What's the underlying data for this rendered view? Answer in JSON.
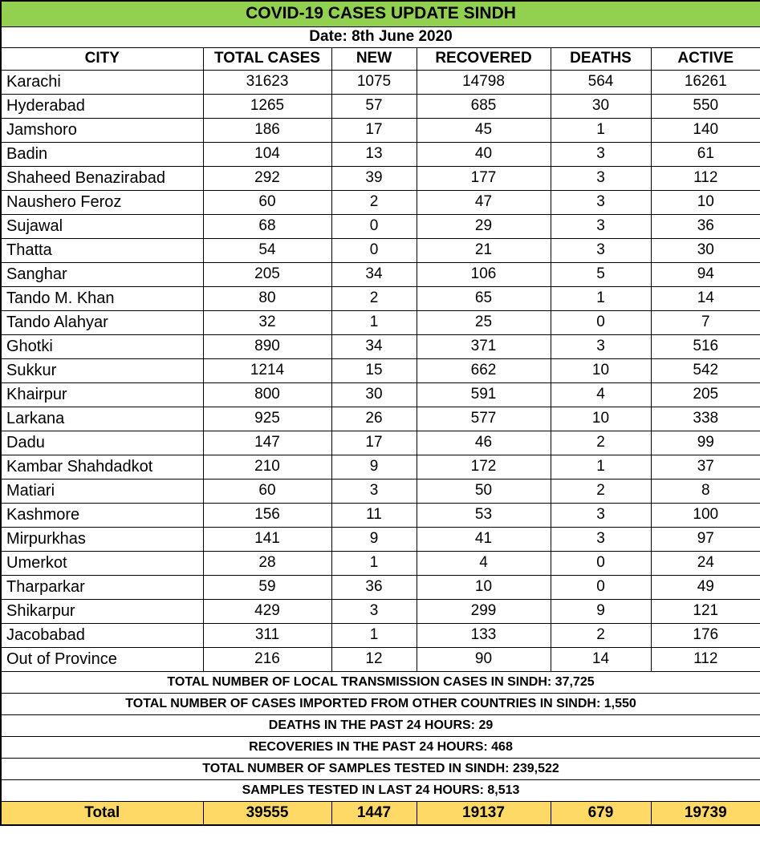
{
  "chart_data": {
    "type": "table",
    "title": "COVID-19 CASES UPDATE SINDH",
    "date_line": "Date: 8th June 2020",
    "columns": [
      "CITY",
      "TOTAL CASES",
      "NEW",
      "RECOVERED",
      "DEATHS",
      "ACTIVE"
    ],
    "rows": [
      [
        "Karachi",
        31623,
        1075,
        14798,
        564,
        16261
      ],
      [
        "Hyderabad",
        1265,
        57,
        685,
        30,
        550
      ],
      [
        "Jamshoro",
        186,
        17,
        45,
        1,
        140
      ],
      [
        "Badin",
        104,
        13,
        40,
        3,
        61
      ],
      [
        "Shaheed Benazirabad",
        292,
        39,
        177,
        3,
        112
      ],
      [
        "Naushero Feroz",
        60,
        2,
        47,
        3,
        10
      ],
      [
        "Sujawal",
        68,
        0,
        29,
        3,
        36
      ],
      [
        "Thatta",
        54,
        0,
        21,
        3,
        30
      ],
      [
        "Sanghar",
        205,
        34,
        106,
        5,
        94
      ],
      [
        "Tando M. Khan",
        80,
        2,
        65,
        1,
        14
      ],
      [
        "Tando Alahyar",
        32,
        1,
        25,
        0,
        7
      ],
      [
        "Ghotki",
        890,
        34,
        371,
        3,
        516
      ],
      [
        "Sukkur",
        1214,
        15,
        662,
        10,
        542
      ],
      [
        "Khairpur",
        800,
        30,
        591,
        4,
        205
      ],
      [
        "Larkana",
        925,
        26,
        577,
        10,
        338
      ],
      [
        "Dadu",
        147,
        17,
        46,
        2,
        99
      ],
      [
        "Kambar Shahdadkot",
        210,
        9,
        172,
        1,
        37
      ],
      [
        "Matiari",
        60,
        3,
        50,
        2,
        8
      ],
      [
        "Kashmore",
        156,
        11,
        53,
        3,
        100
      ],
      [
        "Mirpurkhas",
        141,
        9,
        41,
        3,
        97
      ],
      [
        "Umerkot",
        28,
        1,
        4,
        0,
        24
      ],
      [
        "Tharparkar",
        59,
        36,
        10,
        0,
        49
      ],
      [
        "Shikarpur",
        429,
        3,
        299,
        9,
        121
      ],
      [
        "Jacobabad",
        311,
        1,
        133,
        2,
        176
      ],
      [
        "Out of Province",
        216,
        12,
        90,
        14,
        112
      ]
    ],
    "total_row": [
      "Total",
      39555,
      1447,
      19137,
      679,
      19739
    ],
    "footnotes": [
      "TOTAL NUMBER OF LOCAL TRANSMISSION CASES IN SINDH: 37,725",
      "TOTAL NUMBER OF CASES IMPORTED FROM OTHER COUNTRIES IN SINDH: 1,550",
      "DEATHS IN THE PAST 24 HOURS: 29",
      "RECOVERIES IN THE PAST 24 HOURS: 468",
      "TOTAL NUMBER OF SAMPLES TESTED IN SINDH: 239,522",
      "SAMPLES TESTED IN LAST 24 HOURS: 8,513"
    ],
    "layout_hints": {
      "grid": "on",
      "first_column_align": "left",
      "numeric_align": "center"
    }
  },
  "colors": {
    "title_bg": "#92D050",
    "total_bg": "#FFD966",
    "grid": "#000000",
    "text": "#000000",
    "background": "#FFFFFF"
  }
}
